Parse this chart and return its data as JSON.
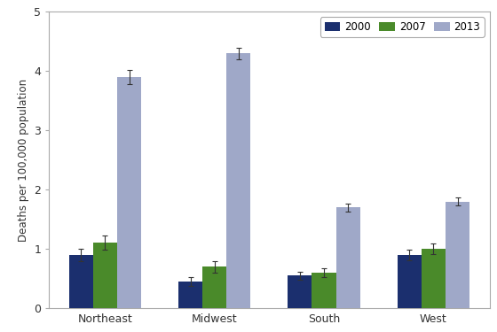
{
  "regions": [
    "Northeast",
    "Midwest",
    "South",
    "West"
  ],
  "years": [
    "2000",
    "2007",
    "2013"
  ],
  "values": {
    "2000": [
      0.9,
      0.45,
      0.55,
      0.9
    ],
    "2007": [
      1.1,
      0.7,
      0.6,
      1.0
    ],
    "2013": [
      3.9,
      4.3,
      1.7,
      1.8
    ]
  },
  "errors": {
    "2000": [
      0.1,
      0.08,
      0.07,
      0.09
    ],
    "2007": [
      0.12,
      0.1,
      0.07,
      0.09
    ],
    "2013": [
      0.12,
      0.1,
      0.07,
      0.07
    ]
  },
  "colors": {
    "2000": "#1b2f6e",
    "2007": "#4a8a2a",
    "2013": "#9fa8c8"
  },
  "ylabel": "Deaths per 100,000 population",
  "ylim": [
    0,
    5
  ],
  "yticks": [
    0,
    1,
    2,
    3,
    4,
    5
  ],
  "bar_width": 0.22,
  "legend_labels": [
    "2000",
    "2007",
    "2013"
  ],
  "plot_background": "#ffffff",
  "figure_background": "#ffffff",
  "spine_color": "#aaaaaa",
  "tick_color": "#555555"
}
